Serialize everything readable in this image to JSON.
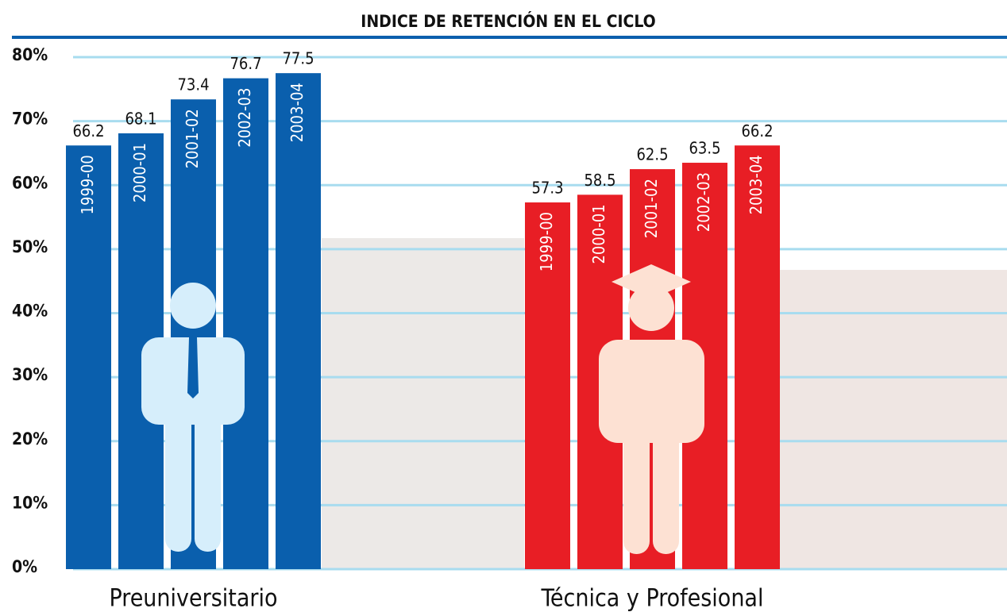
{
  "chart_data": {
    "type": "bar",
    "title": "INDICE DE RETENCIÓN EN EL CICLO",
    "groups": [
      {
        "name": "Preuniversitario",
        "color": "#0a5fad",
        "categories": [
          "1999-00",
          "2000-01",
          "2001-02",
          "2002-03",
          "2003-04"
        ],
        "values": [
          66.2,
          68.1,
          73.4,
          76.7,
          77.5
        ]
      },
      {
        "name": "Técnica y Profesional",
        "color": "#e81e25",
        "categories": [
          "1999-00",
          "2000-01",
          "2001-02",
          "2002-03",
          "2003-04"
        ],
        "values": [
          57.3,
          58.5,
          62.5,
          63.5,
          66.2
        ]
      }
    ],
    "ylim": [
      0,
      80
    ],
    "yticks": [
      {
        "value": 0,
        "label": "0%"
      },
      {
        "value": 10,
        "label": "10%"
      },
      {
        "value": 20,
        "label": "20%"
      },
      {
        "value": 30,
        "label": "30%"
      },
      {
        "value": 40,
        "label": "40%"
      },
      {
        "value": 50,
        "label": "50%"
      },
      {
        "value": 60,
        "label": "60%"
      },
      {
        "value": 70,
        "label": "70%"
      },
      {
        "value": 80,
        "label": "80%"
      }
    ],
    "grid": true,
    "grid_color": "#a8dcef"
  }
}
